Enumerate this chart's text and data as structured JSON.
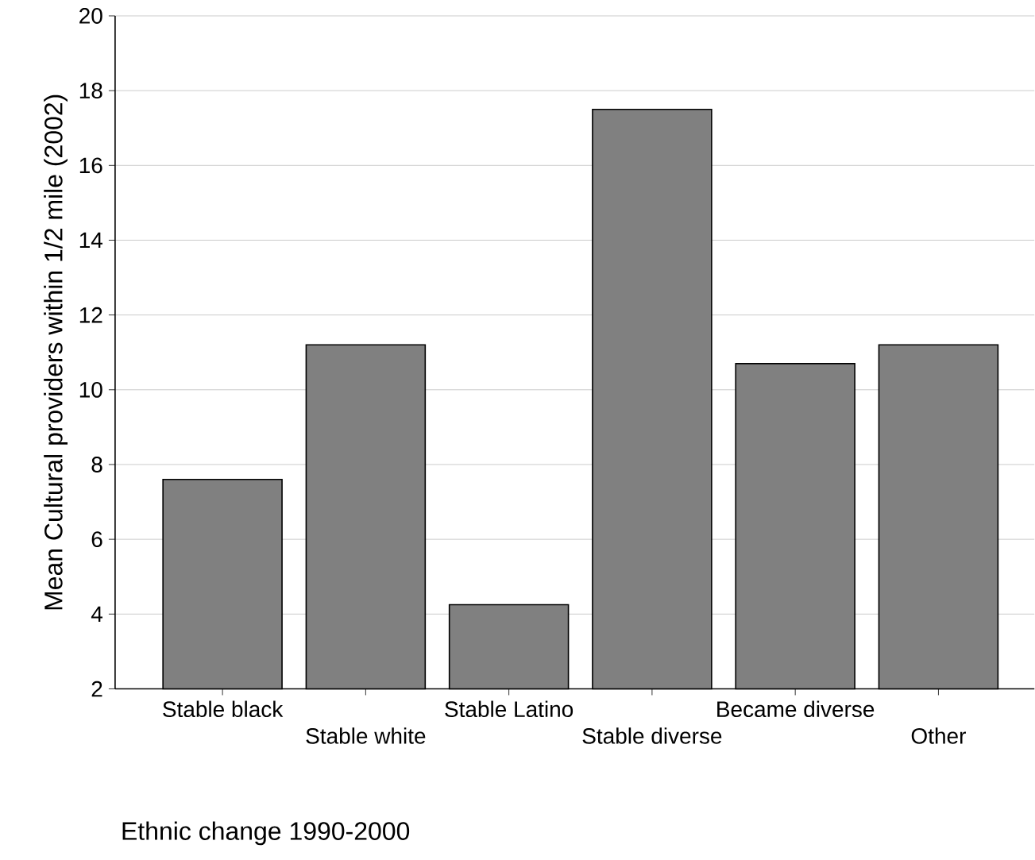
{
  "chart_data": {
    "type": "bar",
    "xlabel": "Ethnic change 1990-2000",
    "ylabel": "Mean Cultural providers within 1/2 mile (2002)",
    "categories": [
      "Stable black",
      "Stable white",
      "Stable Latino",
      "Stable diverse",
      "Became diverse",
      "Other"
    ],
    "values": [
      7.6,
      11.2,
      4.25,
      17.5,
      10.7,
      11.2
    ],
    "color": "#808080",
    "ylim": [
      2,
      20
    ],
    "yticks": [
      2,
      4,
      6,
      8,
      10,
      12,
      14,
      16,
      18,
      20
    ],
    "grid": "y"
  }
}
